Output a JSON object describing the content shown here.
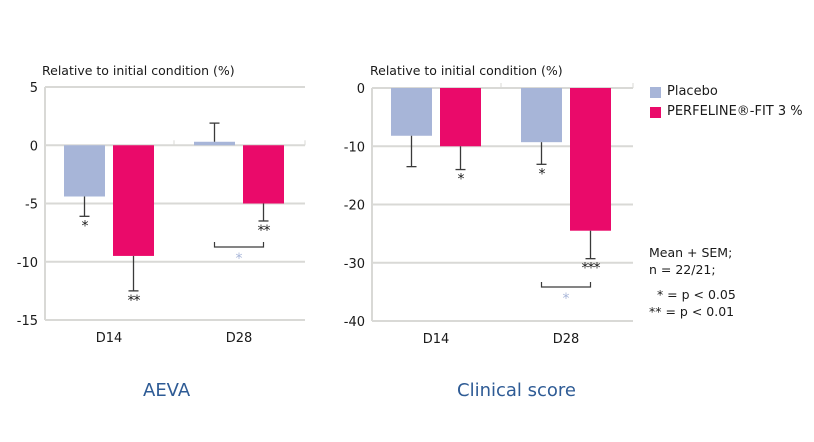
{
  "colors": {
    "placebo": "#a7b5d8",
    "perfeline": "#ea0a6a",
    "grid": "#d9d9d6",
    "error_bar": "#3a3a3a",
    "sig_between": "#a7b5d8",
    "caption": "#2e5b95"
  },
  "legend": {
    "items": [
      {
        "label": "Placebo",
        "color": "#a7b5d8"
      },
      {
        "label": "PERFELINE®-FIT 3 %",
        "color": "#ea0a6a"
      }
    ]
  },
  "notes": {
    "line1": "Mean + SEM;",
    "line2": "n = 22/21;",
    "line3": "  * = p < 0.05",
    "line4": "** = p < 0.01"
  },
  "chart_data": [
    {
      "type": "bar",
      "title": "AEVA",
      "ylabel": "Relative to initial condition (%)",
      "xlabel": "",
      "categories": [
        "D14",
        "D28"
      ],
      "ylim": [
        -15,
        5
      ],
      "yticks": [
        5,
        0,
        -5,
        -10,
        -15
      ],
      "grid": true,
      "legend": "right",
      "series": [
        {
          "name": "Placebo",
          "values": [
            -4.4,
            0.3
          ],
          "sem": [
            1.7,
            1.6
          ],
          "sig": [
            "*",
            ""
          ]
        },
        {
          "name": "PERFELINE®-FIT 3 %",
          "values": [
            -9.5,
            -5.0
          ],
          "sem": [
            3.0,
            1.5
          ],
          "sig": [
            "**",
            "**"
          ]
        }
      ],
      "between_group_sig": [
        {
          "category": "D28",
          "label": "*"
        }
      ]
    },
    {
      "type": "bar",
      "title": "Clinical score",
      "ylabel": "Relative to initial condition (%)",
      "xlabel": "",
      "categories": [
        "D14",
        "D28"
      ],
      "ylim": [
        -40,
        0
      ],
      "yticks": [
        0,
        -10,
        -20,
        -30,
        -40
      ],
      "grid": true,
      "legend": "right",
      "series": [
        {
          "name": "Placebo",
          "values": [
            -8.2,
            -9.3
          ],
          "sem": [
            5.3,
            3.8
          ],
          "sig": [
            "",
            "*"
          ]
        },
        {
          "name": "PERFELINE®-FIT 3 %",
          "values": [
            -10.0,
            -24.5
          ],
          "sem": [
            4.0,
            4.8
          ],
          "sig": [
            "*",
            "***"
          ]
        }
      ],
      "between_group_sig": [
        {
          "category": "D28",
          "label": "*"
        }
      ]
    }
  ]
}
